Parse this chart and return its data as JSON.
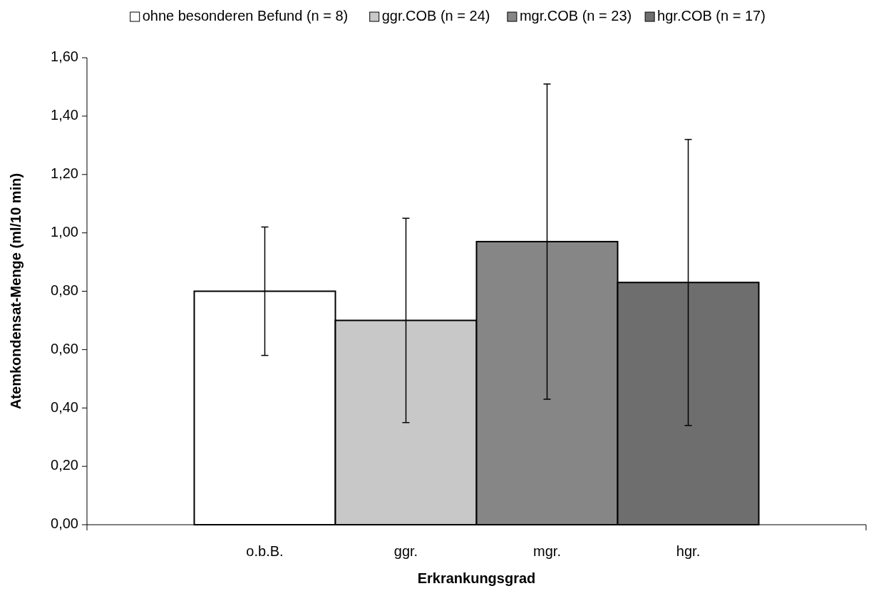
{
  "chart_data": {
    "type": "bar",
    "xlabel": "Erkrankungsgrad",
    "ylabel": "Atemkondensat-Menge (ml/10 min)",
    "categories": [
      "o.b.B.",
      "ggr.",
      "mgr.",
      "hgr."
    ],
    "series": [
      {
        "name": "ohne besonderen Befund (n = 8)",
        "color": "#ffffff",
        "values": [
          0.8,
          null,
          null,
          null
        ],
        "errors": [
          0.22,
          null,
          null,
          null
        ]
      },
      {
        "name": "ggr.COB (n = 24)",
        "color": "#c8c8c8",
        "values": [
          null,
          0.7,
          null,
          null
        ],
        "errors": [
          null,
          0.35,
          null,
          null
        ]
      },
      {
        "name": "mgr.COB (n = 23)",
        "color": "#868686",
        "values": [
          null,
          null,
          0.97,
          null
        ],
        "errors": [
          null,
          null,
          0.54,
          null
        ]
      },
      {
        "name": "hgr.COB (n = 17)",
        "color": "#6e6e6e",
        "values": [
          null,
          null,
          null,
          0.83
        ],
        "errors": [
          null,
          null,
          null,
          0.49
        ]
      }
    ],
    "ylim": [
      0,
      1.6
    ],
    "yticks": [
      {
        "value": 0,
        "label": "0,00"
      },
      {
        "value": 0.2,
        "label": "0,20"
      },
      {
        "value": 0.4,
        "label": "0,40"
      },
      {
        "value": 0.6,
        "label": "0,60"
      },
      {
        "value": 0.8,
        "label": "0,80"
      },
      {
        "value": 1,
        "label": "1,00"
      },
      {
        "value": 1.2,
        "label": "1,20"
      },
      {
        "value": 1.4,
        "label": "1,40"
      },
      {
        "value": 1.6,
        "label": "1,60"
      }
    ],
    "legend": "top",
    "grid": false
  }
}
